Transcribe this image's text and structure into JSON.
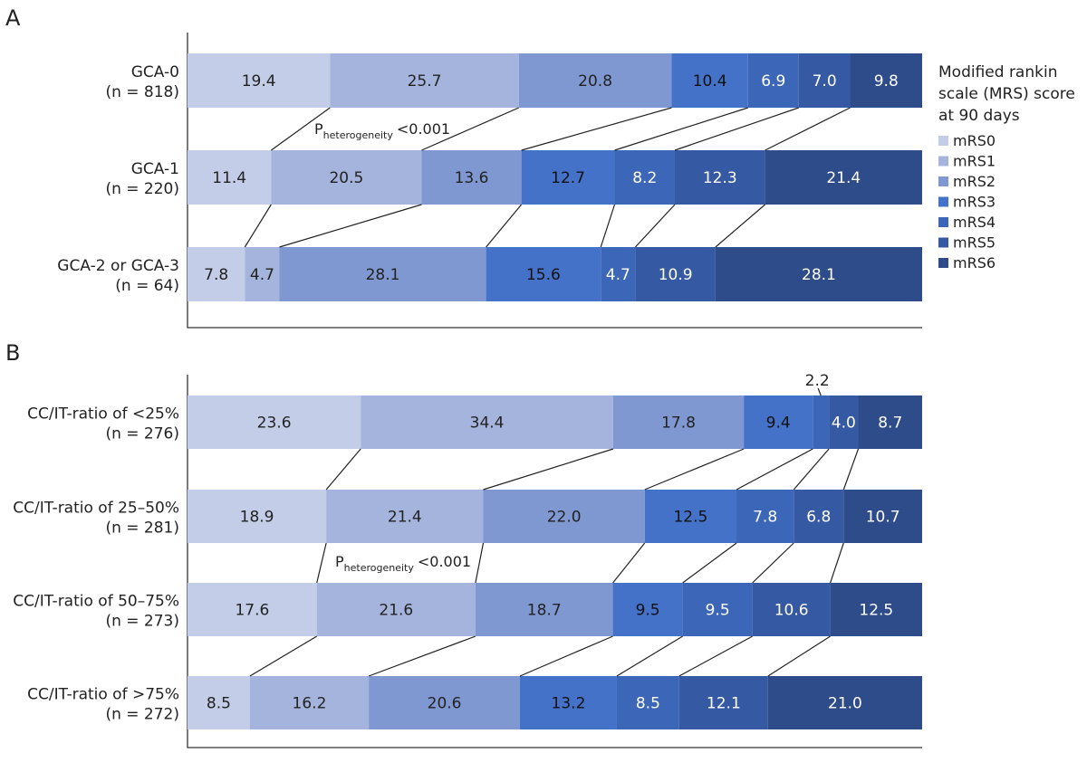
{
  "chart_data": [
    {
      "type": "bar",
      "stacked": "horizontal-100%",
      "panel": "A",
      "categories": [
        {
          "name": "GCA-0",
          "n": "(n = 818)"
        },
        {
          "name": "GCA-1",
          "n": "(n = 220)"
        },
        {
          "name": "GCA-2 or GCA-3",
          "n": "(n = 64)"
        }
      ],
      "series": [
        {
          "name": "mRS0",
          "values": [
            19.4,
            11.4,
            7.8
          ]
        },
        {
          "name": "mRS1",
          "values": [
            25.7,
            20.5,
            4.7
          ]
        },
        {
          "name": "mRS2",
          "values": [
            20.8,
            13.6,
            28.1
          ]
        },
        {
          "name": "mRS3",
          "values": [
            10.4,
            12.7,
            15.6
          ]
        },
        {
          "name": "mRS4",
          "values": [
            6.9,
            8.2,
            4.7
          ]
        },
        {
          "name": "mRS5",
          "values": [
            7.0,
            12.3,
            10.9
          ]
        },
        {
          "name": "mRS6",
          "values": [
            9.8,
            21.4,
            28.1
          ]
        }
      ],
      "annotation": {
        "p_main": "P",
        "p_sub": "heterogeneity",
        "p_value": "<0.001"
      }
    },
    {
      "type": "bar",
      "stacked": "horizontal-100%",
      "panel": "B",
      "categories": [
        {
          "name": "CC/IT-ratio of <25%",
          "n": "(n = 276)"
        },
        {
          "name": "CC/IT-ratio of 25–50%",
          "n": "(n = 281)"
        },
        {
          "name": "CC/IT-ratio of 50–75%",
          "n": "(n = 273)"
        },
        {
          "name": "CC/IT-ratio of >75%",
          "n": "(n = 272)"
        }
      ],
      "series": [
        {
          "name": "mRS0",
          "values": [
            23.6,
            18.9,
            17.6,
            8.5
          ]
        },
        {
          "name": "mRS1",
          "values": [
            34.4,
            21.4,
            21.6,
            16.2
          ]
        },
        {
          "name": "mRS2",
          "values": [
            17.8,
            22.0,
            18.7,
            20.6
          ]
        },
        {
          "name": "mRS3",
          "values": [
            9.4,
            12.5,
            9.5,
            13.2
          ]
        },
        {
          "name": "mRS4",
          "values": [
            2.2,
            7.8,
            9.5,
            8.5
          ]
        },
        {
          "name": "mRS5",
          "values": [
            4.0,
            6.8,
            10.6,
            12.1
          ]
        },
        {
          "name": "mRS6",
          "values": [
            8.7,
            10.7,
            12.5,
            21.0
          ]
        }
      ],
      "annotation": {
        "p_main": "P",
        "p_sub": "heterogeneity",
        "p_value": "<0.001"
      }
    }
  ],
  "legend": {
    "title_lines": [
      "Modified rankin",
      "scale (MRS) score",
      "at 90 days"
    ],
    "items": [
      {
        "label": "mRS0",
        "color": "#c3cde7"
      },
      {
        "label": "mRS1",
        "color": "#a5b4dc"
      },
      {
        "label": "mRS2",
        "color": "#7f98d2"
      },
      {
        "label": "mRS3",
        "color": "#4472c9"
      },
      {
        "label": "mRS4",
        "color": "#3c67b8"
      },
      {
        "label": "mRS5",
        "color": "#355aa3"
      },
      {
        "label": "mRS6",
        "color": "#2f4c8a"
      }
    ]
  },
  "label_colors": [
    "#222222",
    "#222222",
    "#222222",
    "#111111",
    "#ffffff",
    "#ffffff",
    "#ffffff"
  ]
}
